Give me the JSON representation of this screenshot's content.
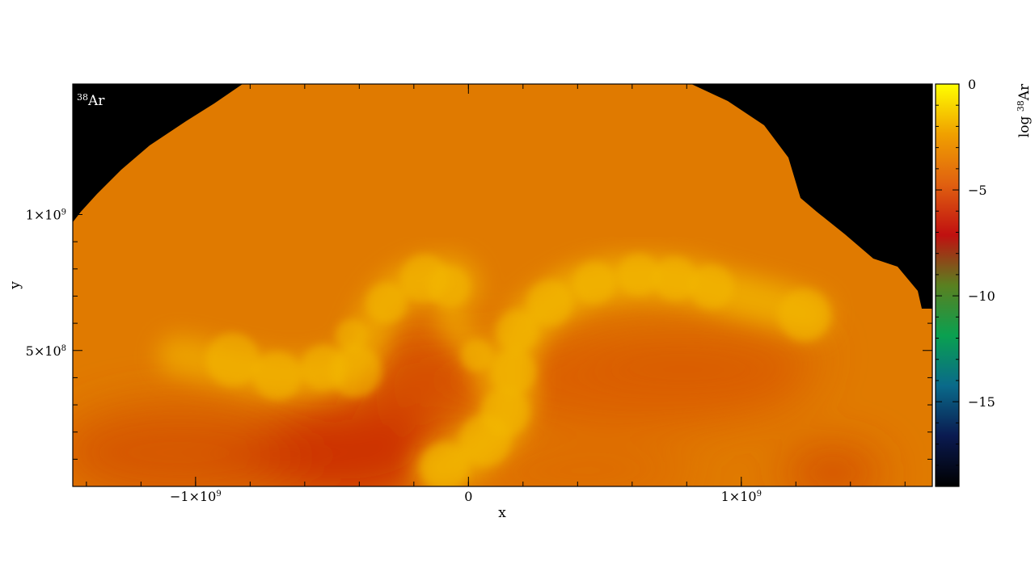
{
  "chart_data": {
    "type": "heatmap",
    "title": "",
    "panel_label": {
      "sup": "38",
      "text": "Ar"
    },
    "xlabel": "x",
    "ylabel": "y",
    "xlim": [
      -1450000000,
      1700000000
    ],
    "ylim": [
      0,
      1480000000
    ],
    "x_ticks": [
      {
        "value": -1000000000,
        "label": "−1×10",
        "sup": "9"
      },
      {
        "value": 0,
        "label": "0",
        "sup": ""
      },
      {
        "value": 1000000000,
        "label": "1×10",
        "sup": "9"
      }
    ],
    "y_ticks": [
      {
        "value": 500000000,
        "label": "5×10",
        "sup": "8"
      },
      {
        "value": 1000000000,
        "label": "1×10",
        "sup": "9"
      }
    ],
    "colorbar": {
      "label_prefix": "log ",
      "label_sup": "38",
      "label_suffix": "Ar",
      "range": [
        -19,
        0
      ],
      "ticks": [
        {
          "value": 0,
          "label": "0"
        },
        {
          "value": -5,
          "label": "−5"
        },
        {
          "value": -10,
          "label": "−10"
        },
        {
          "value": -15,
          "label": "−15"
        }
      ],
      "colors": [
        "#000000",
        "#0a1a50",
        "#0a6a8a",
        "#0aa050",
        "#5a8020",
        "#c01010",
        "#e06010",
        "#f0a000",
        "#ffff00"
      ]
    },
    "background_value": -5.3,
    "empty_color": "#000000",
    "grid": false
  }
}
